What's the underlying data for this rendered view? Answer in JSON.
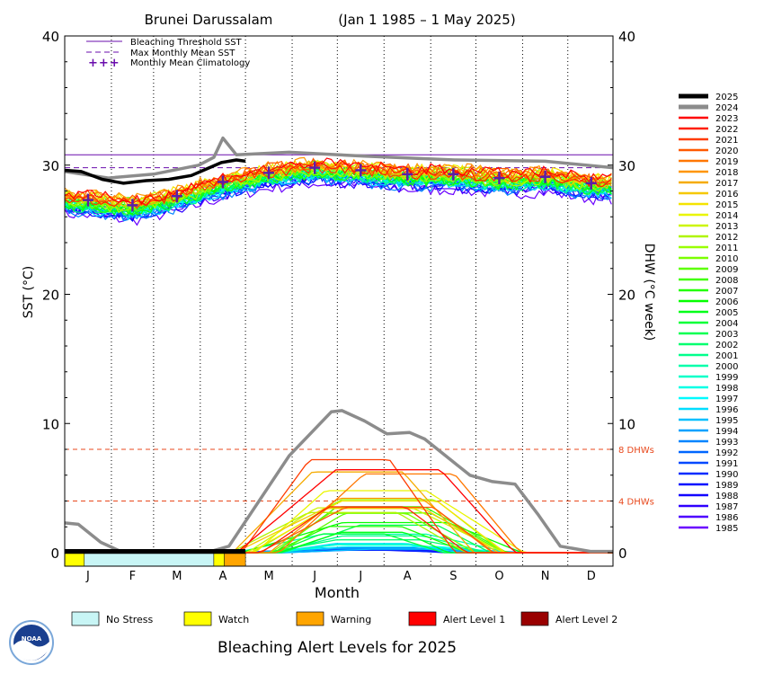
{
  "chart_data": {
    "type": "line",
    "title": "Brunei Darussalam",
    "date_range": "(Jan 1 1985 – 1 May 2025)",
    "xlabel": "Month",
    "ylabel_left": "SST (°C)",
    "ylabel_right": "DHW (°C week)",
    "ylim": [
      0,
      40
    ],
    "y_ticks": [
      "0",
      "10",
      "20",
      "30",
      "40"
    ],
    "months": [
      "J",
      "F",
      "M",
      "A",
      "M",
      "J",
      "J",
      "A",
      "S",
      "O",
      "N",
      "D"
    ],
    "legend_top": [
      {
        "label": "Bleaching Threshold SST",
        "style": "solid",
        "color": "#6a0dad"
      },
      {
        "label": "Max Monthly Mean SST",
        "style": "dashed",
        "color": "#6a0dad"
      },
      {
        "label": "Monthly Mean Climatology",
        "style": "plus",
        "color": "#6a0dad"
      }
    ],
    "bleaching_threshold_sst": 30.8,
    "max_monthly_mean_sst": 29.8,
    "monthly_mean_climatology": [
      27.3,
      26.9,
      27.6,
      28.7,
      29.4,
      29.8,
      29.6,
      29.3,
      29.3,
      29.0,
      29.1,
      28.6
    ],
    "dhw_reference_lines": [
      {
        "value": 8,
        "label": "8 DHWs"
      },
      {
        "value": 4,
        "label": "4 DHWs"
      }
    ],
    "years": [
      "2025",
      "2024",
      "2023",
      "2022",
      "2021",
      "2020",
      "2019",
      "2018",
      "2017",
      "2016",
      "2015",
      "2014",
      "2013",
      "2012",
      "2011",
      "2010",
      "2009",
      "2008",
      "2007",
      "2006",
      "2005",
      "2004",
      "2003",
      "2002",
      "2001",
      "2000",
      "1999",
      "1998",
      "1997",
      "1996",
      "1995",
      "1994",
      "1993",
      "1992",
      "1991",
      "1990",
      "1989",
      "1988",
      "1987",
      "1986",
      "1985"
    ],
    "series_highlight": [
      {
        "name": "2025",
        "color": "#000000",
        "sst_days": [
          1,
          12,
          26,
          40,
          55,
          70,
          85,
          95,
          105,
          115,
          121
        ],
        "sst": [
          29.6,
          29.5,
          28.9,
          28.6,
          28.8,
          28.9,
          29.2,
          29.7,
          30.2,
          30.4,
          30.3
        ],
        "dhw_days": [
          1,
          121
        ],
        "dhw": [
          0,
          0
        ]
      },
      {
        "name": "2024",
        "color": "#8c8c8c",
        "sst_days": [
          1,
          30,
          60,
          90,
          100,
          106,
          115,
          150,
          200,
          260,
          320,
          365
        ],
        "sst": [
          29.5,
          29.0,
          29.3,
          30.0,
          30.6,
          32.1,
          30.8,
          31.0,
          30.7,
          30.4,
          30.3,
          29.8
        ],
        "dhw_days": [
          1,
          10,
          25,
          40,
          95,
          110,
          150,
          178,
          185,
          200,
          215,
          230,
          240,
          270,
          285,
          300,
          315,
          330,
          350,
          365
        ],
        "dhw": [
          2.3,
          2.2,
          0.8,
          0,
          0,
          0.5,
          7.5,
          10.9,
          11.0,
          10.2,
          9.2,
          9.3,
          8.8,
          6.0,
          5.5,
          5.3,
          3.0,
          0.5,
          0.1,
          0.1
        ]
      }
    ],
    "alert_legend": [
      {
        "label": "No Stress",
        "color": "#c8f5f5"
      },
      {
        "label": "Watch",
        "color": "#ffff00"
      },
      {
        "label": "Warning",
        "color": "#ffa500"
      },
      {
        "label": "Alert Level 1",
        "color": "#ff0000"
      },
      {
        "label": "Alert Level 2",
        "color": "#990000"
      }
    ],
    "alert_bar_2025": [
      {
        "start_day": 1,
        "end_day": 14,
        "level": "Watch"
      },
      {
        "start_day": 14,
        "end_day": 100,
        "level": "No Stress"
      },
      {
        "start_day": 100,
        "end_day": 107,
        "level": "Watch"
      },
      {
        "start_day": 107,
        "end_day": 121,
        "level": "Warning"
      }
    ],
    "footer_title": "Bleaching Alert Levels for 2025"
  }
}
